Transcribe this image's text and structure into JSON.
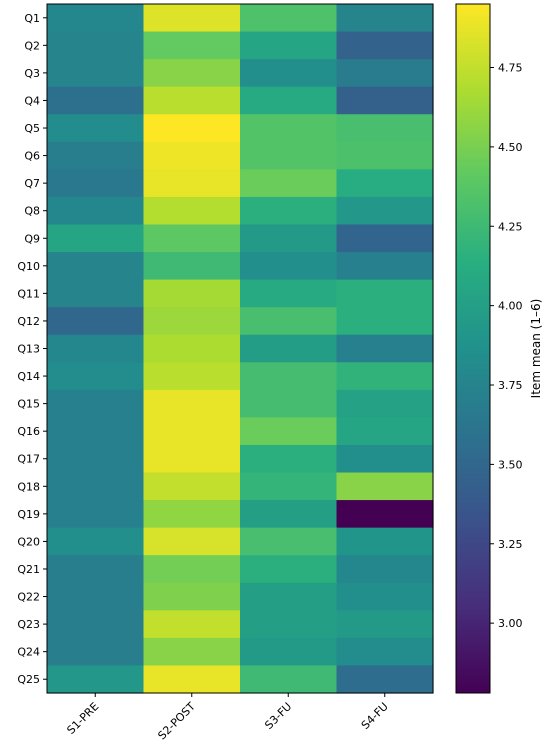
{
  "chart_data": {
    "type": "heatmap",
    "title": "",
    "xlabel": "",
    "ylabel": "",
    "columns": [
      "S1-PRE",
      "S2-POST",
      "S3-FU",
      "S4-FU"
    ],
    "rows": [
      "Q1",
      "Q2",
      "Q3",
      "Q4",
      "Q5",
      "Q6",
      "Q7",
      "Q8",
      "Q9",
      "Q10",
      "Q11",
      "Q12",
      "Q13",
      "Q14",
      "Q15",
      "Q16",
      "Q17",
      "Q18",
      "Q19",
      "Q20",
      "Q21",
      "Q22",
      "Q23",
      "Q24",
      "Q25"
    ],
    "values": [
      [
        3.78,
        4.84,
        4.33,
        3.75
      ],
      [
        3.75,
        4.42,
        4.05,
        3.47
      ],
      [
        3.75,
        4.55,
        3.85,
        3.68
      ],
      [
        3.58,
        4.72,
        4.1,
        3.45
      ],
      [
        3.82,
        4.95,
        4.35,
        4.3
      ],
      [
        3.7,
        4.9,
        4.35,
        4.32
      ],
      [
        3.65,
        4.88,
        4.45,
        4.12
      ],
      [
        3.78,
        4.7,
        4.15,
        3.92
      ],
      [
        4.05,
        4.4,
        3.95,
        3.48
      ],
      [
        3.75,
        4.25,
        3.85,
        3.72
      ],
      [
        3.75,
        4.65,
        4.1,
        4.15
      ],
      [
        3.5,
        4.62,
        4.3,
        4.15
      ],
      [
        3.78,
        4.68,
        3.98,
        3.72
      ],
      [
        3.82,
        4.72,
        4.28,
        4.18
      ],
      [
        3.72,
        4.88,
        4.28,
        4.02
      ],
      [
        3.72,
        4.88,
        4.45,
        4.05
      ],
      [
        3.72,
        4.88,
        4.15,
        3.85
      ],
      [
        3.72,
        4.75,
        4.2,
        4.55
      ],
      [
        3.72,
        4.58,
        4.0,
        2.78
      ],
      [
        3.85,
        4.82,
        4.3,
        3.9
      ],
      [
        3.7,
        4.48,
        4.15,
        3.78
      ],
      [
        3.7,
        4.52,
        4.0,
        3.85
      ],
      [
        3.7,
        4.75,
        4.0,
        3.95
      ],
      [
        3.7,
        4.55,
        3.95,
        3.82
      ],
      [
        3.92,
        4.88,
        4.25,
        3.55
      ]
    ],
    "vmin": 2.78,
    "vmax": 4.95,
    "colormap": "viridis",
    "colorbar": {
      "label": "Item mean (1–6)",
      "ticks": [
        3.0,
        3.25,
        3.5,
        3.75,
        4.0,
        4.25,
        4.5,
        4.75
      ],
      "tick_labels": [
        "3.00",
        "3.25",
        "3.50",
        "3.75",
        "4.00",
        "4.25",
        "4.50",
        "4.75"
      ]
    }
  }
}
